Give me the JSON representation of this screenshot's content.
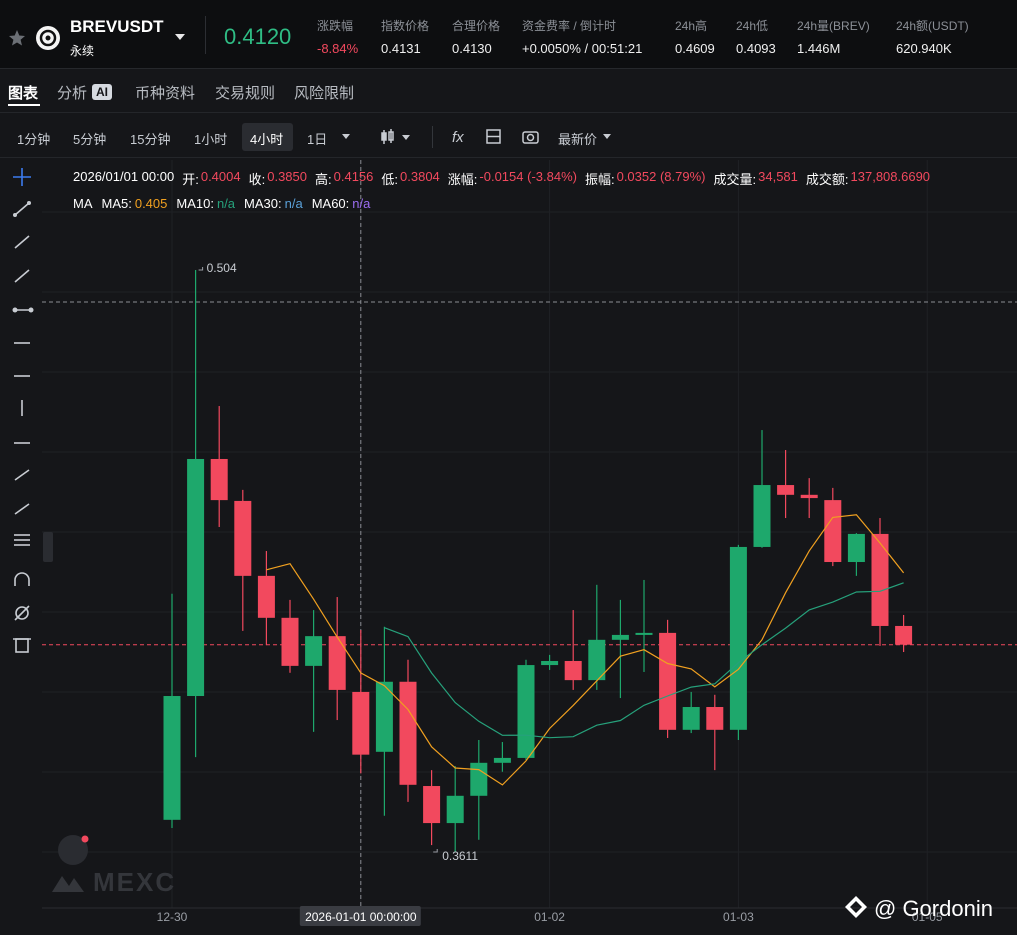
{
  "header": {
    "symbol": "BREVUSDT",
    "contract": "永续",
    "last_price": "0.4120",
    "stats": [
      {
        "label": "涨跌幅",
        "value": "-8.84%"
      },
      {
        "label": "指数价格",
        "value": "0.4131"
      },
      {
        "label": "合理价格",
        "value": "0.4130"
      },
      {
        "label": "资金费率 / 倒计时",
        "value": "+0.0050%  / 00:51:21"
      },
      {
        "label": "24h高",
        "value": "0.4609"
      },
      {
        "label": "24h低",
        "value": "0.4093"
      },
      {
        "label": "24h量(BREV)",
        "value": "1.446M"
      },
      {
        "label": "24h额(USDT)",
        "value": "620.940K"
      }
    ]
  },
  "tabs": [
    "图表",
    "分析",
    "币种资料",
    "交易规则",
    "风险限制"
  ],
  "ai_badge": "AI",
  "toolbar": {
    "intervals": [
      "1分钟",
      "5分钟",
      "15分钟",
      "1小时",
      "4小时",
      "1日"
    ],
    "active": "4小时",
    "price_type": "最新价"
  },
  "ohlc_info": {
    "time": "2026/01/01 00:00",
    "items": [
      {
        "label": "开:",
        "value": "0.4004"
      },
      {
        "label": "收:",
        "value": "0.3850"
      },
      {
        "label": "高:",
        "value": "0.4156"
      },
      {
        "label": "低:",
        "value": "0.3804"
      },
      {
        "label": "涨幅:",
        "value": "-0.0154 (-3.84%)"
      },
      {
        "label": "振幅:",
        "value": "0.0352 (8.79%)"
      },
      {
        "label": "成交量:",
        "value": "34,581"
      },
      {
        "label": "成交额:",
        "value": "137,808.6690"
      }
    ]
  },
  "ma": {
    "title": "MA",
    "items": [
      {
        "label": "MA5:",
        "value": "0.405",
        "color": "#f0a020"
      },
      {
        "label": "MA10:",
        "value": "n/a",
        "color": "#26a17b"
      },
      {
        "label": "MA30:",
        "value": "n/a",
        "color": "#5aa0d8"
      },
      {
        "label": "MA60:",
        "value": "n/a",
        "color": "#9b6cf0"
      }
    ]
  },
  "chart": {
    "up_color": "#1ea86c",
    "down_color": "#f2495e",
    "high_label": "0.504",
    "low_label": "0.3611",
    "x_labels": [
      "12-30",
      "2026-01-01 00:00:00",
      "01-02",
      "01-03",
      "01-05"
    ],
    "candles": [
      {
        "o": 0.369,
        "h": 0.4245,
        "l": 0.367,
        "c": 0.3994
      },
      {
        "o": 0.3994,
        "h": 0.504,
        "l": 0.3844,
        "c": 0.4576
      },
      {
        "o": 0.4576,
        "h": 0.4706,
        "l": 0.4409,
        "c": 0.4475
      },
      {
        "o": 0.4473,
        "h": 0.45,
        "l": 0.4154,
        "c": 0.4289
      },
      {
        "o": 0.4289,
        "h": 0.435,
        "l": 0.4119,
        "c": 0.4186
      },
      {
        "o": 0.4186,
        "h": 0.423,
        "l": 0.4051,
        "c": 0.4068
      },
      {
        "o": 0.4068,
        "h": 0.4205,
        "l": 0.3906,
        "c": 0.4141
      },
      {
        "o": 0.4141,
        "h": 0.4237,
        "l": 0.3935,
        "c": 0.4009
      },
      {
        "o": 0.4004,
        "h": 0.4156,
        "l": 0.3804,
        "c": 0.385
      },
      {
        "o": 0.3857,
        "h": 0.4164,
        "l": 0.37,
        "c": 0.4029
      },
      {
        "o": 0.4029,
        "h": 0.4083,
        "l": 0.3734,
        "c": 0.3776
      },
      {
        "o": 0.3773,
        "h": 0.3812,
        "l": 0.3628,
        "c": 0.3682
      },
      {
        "o": 0.3682,
        "h": 0.3822,
        "l": 0.3611,
        "c": 0.3749
      },
      {
        "o": 0.3749,
        "h": 0.3886,
        "l": 0.3641,
        "c": 0.383
      },
      {
        "o": 0.383,
        "h": 0.3881,
        "l": 0.3808,
        "c": 0.3842
      },
      {
        "o": 0.3842,
        "h": 0.4083,
        "l": 0.3837,
        "c": 0.407
      },
      {
        "o": 0.407,
        "h": 0.4095,
        "l": 0.4058,
        "c": 0.408
      },
      {
        "o": 0.408,
        "h": 0.4205,
        "l": 0.4009,
        "c": 0.4033
      },
      {
        "o": 0.4033,
        "h": 0.4267,
        "l": 0.4009,
        "c": 0.4132
      },
      {
        "o": 0.4132,
        "h": 0.423,
        "l": 0.3989,
        "c": 0.4144
      },
      {
        "o": 0.4144,
        "h": 0.4279,
        "l": 0.4053,
        "c": 0.4149
      },
      {
        "o": 0.4149,
        "h": 0.4181,
        "l": 0.3891,
        "c": 0.3911
      },
      {
        "o": 0.3911,
        "h": 0.4004,
        "l": 0.3903,
        "c": 0.3967
      },
      {
        "o": 0.3967,
        "h": 0.3997,
        "l": 0.3812,
        "c": 0.3911
      },
      {
        "o": 0.3911,
        "h": 0.4365,
        "l": 0.3886,
        "c": 0.436
      },
      {
        "o": 0.436,
        "h": 0.4647,
        "l": 0.4358,
        "c": 0.4512
      },
      {
        "o": 0.4512,
        "h": 0.4598,
        "l": 0.4431,
        "c": 0.4488
      },
      {
        "o": 0.4488,
        "h": 0.4529,
        "l": 0.4431,
        "c": 0.448
      },
      {
        "o": 0.4475,
        "h": 0.4505,
        "l": 0.4313,
        "c": 0.4323
      },
      {
        "o": 0.4323,
        "h": 0.4394,
        "l": 0.4289,
        "c": 0.4392
      },
      {
        "o": 0.4392,
        "h": 0.4431,
        "l": 0.4117,
        "c": 0.4166
      },
      {
        "o": 0.4166,
        "h": 0.4193,
        "l": 0.4102,
        "c": 0.412
      }
    ]
  },
  "watermark": "MEXC",
  "credit": "@ Gordonin"
}
